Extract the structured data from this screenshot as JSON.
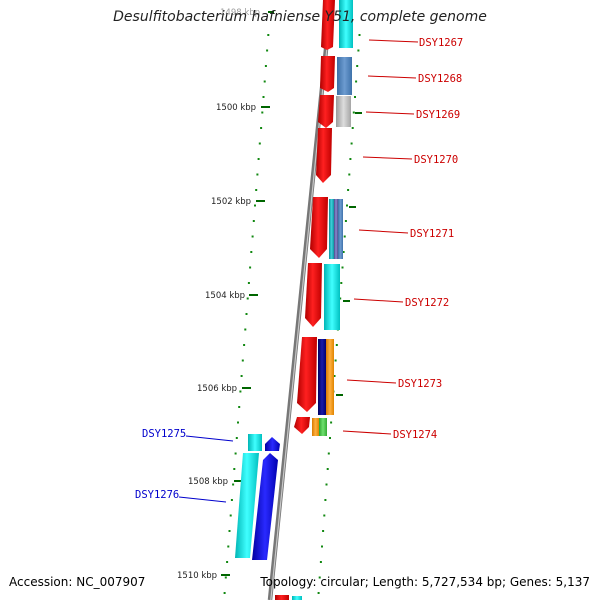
{
  "title": "Desulfitobacterium hafniense Y51, complete genome",
  "accession_text": "Accession: NC_007907",
  "summary_text": "Topology: circular; Length: 5,727,534 bp; Genes: 5,137",
  "colors": {
    "forward": "#cc0000",
    "reverse": "#0000cc",
    "tick": "#006600"
  },
  "ticks": [
    {
      "label": "1498 kbp"
    },
    {
      "label": "1500 kbp"
    },
    {
      "label": "1502 kbp"
    },
    {
      "label": "1504 kbp"
    },
    {
      "label": "1506 kbp"
    },
    {
      "label": "1508 kbp"
    },
    {
      "label": "1510 kbp"
    }
  ],
  "genes": [
    {
      "id": "DSY1267",
      "strand": "forward"
    },
    {
      "id": "DSY1268",
      "strand": "forward"
    },
    {
      "id": "DSY1269",
      "strand": "forward"
    },
    {
      "id": "DSY1270",
      "strand": "forward"
    },
    {
      "id": "DSY1271",
      "strand": "forward"
    },
    {
      "id": "DSY1272",
      "strand": "forward"
    },
    {
      "id": "DSY1273",
      "strand": "forward"
    },
    {
      "id": "DSY1274",
      "strand": "forward"
    },
    {
      "id": "DSY1275",
      "strand": "reverse"
    },
    {
      "id": "DSY1276",
      "strand": "reverse"
    }
  ]
}
